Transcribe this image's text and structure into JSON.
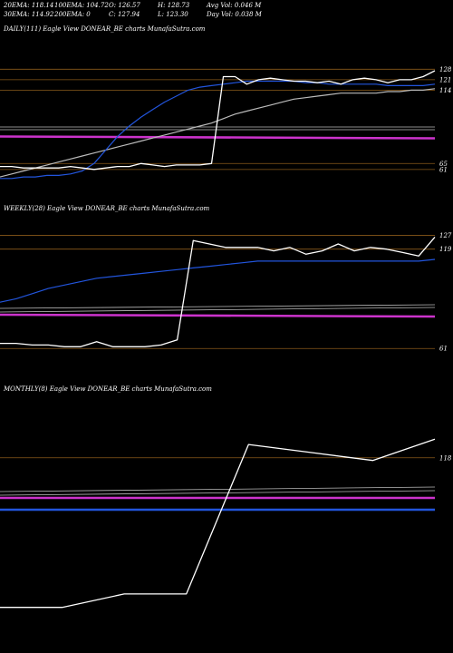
{
  "header": {
    "r1": [
      "20EMA: 118.14",
      "100EMA: 104.72",
      "O: 126.57",
      "H: 128.73",
      "Avg Vol: 0.046  M"
    ],
    "r2": [
      "30EMA: 114.92",
      "200EMA: 0",
      "C: 127.94",
      "L: 123.30",
      "Day Vol: 0.038  M"
    ]
  },
  "colors": {
    "price": "#ffffff",
    "ema_blue": "#2255dd",
    "magenta": "#cc33cc",
    "orange": "#8a5a1a",
    "gray": "#bbbbbb"
  },
  "chart_data": [
    {
      "type": "line",
      "title": "DAILY(111) Eagle  View  DONEAR_BE charts MunafaSutra.com",
      "ylim": [
        50,
        150
      ],
      "levels": [
        128,
        121,
        114,
        65,
        61
      ],
      "level_labels": [
        "128",
        "121",
        "114",
        "65",
        "61"
      ],
      "x": [
        0,
        3,
        6,
        9,
        12,
        15,
        18,
        21,
        24,
        27,
        30,
        33,
        36,
        39,
        42,
        45,
        48,
        51,
        54,
        57,
        60,
        63,
        66,
        69,
        72,
        75,
        78,
        81,
        84,
        87,
        90,
        93,
        96,
        99,
        102,
        105,
        108,
        111
      ],
      "series": [
        {
          "values": [
            63,
            63,
            62,
            62,
            62,
            62,
            63,
            62,
            61,
            62,
            63,
            63,
            65,
            64,
            63,
            64,
            64,
            64,
            65,
            123,
            123,
            118,
            121,
            122,
            121,
            120,
            120,
            119,
            120,
            118,
            121,
            122,
            121,
            119,
            121,
            121,
            123,
            127
          ]
        },
        {
          "values": [
            55,
            55,
            56,
            56,
            57,
            57,
            58,
            60,
            65,
            74,
            83,
            90,
            96,
            101,
            106,
            110,
            114,
            116,
            117,
            118,
            119,
            120,
            120,
            120,
            120,
            120,
            119,
            119,
            118,
            118,
            118,
            118,
            118,
            117,
            117,
            117,
            117,
            118
          ]
        },
        {
          "values": [
            56,
            58,
            60,
            62,
            64,
            66,
            68,
            70,
            72,
            74,
            76,
            78,
            80,
            82,
            84,
            86,
            88,
            90,
            92,
            95,
            98,
            100,
            102,
            104,
            106,
            108,
            109,
            110,
            111,
            112,
            112,
            112,
            112,
            113,
            113,
            114,
            114,
            115
          ]
        }
      ]
    },
    {
      "type": "line",
      "title": "WEEKLY(28) Eagle  View  DONEAR_BE charts MunafaSutra.com",
      "ylim": [
        50,
        140
      ],
      "levels": [
        127,
        119,
        61
      ],
      "level_labels": [
        "127",
        "119",
        "61"
      ],
      "x": [
        0,
        1,
        2,
        3,
        4,
        5,
        6,
        7,
        8,
        9,
        10,
        11,
        12,
        13,
        14,
        15,
        16,
        17,
        18,
        19,
        20,
        21,
        22,
        23,
        24,
        25,
        26,
        27
      ],
      "series": [
        {
          "values": [
            64,
            64,
            63,
            63,
            62,
            62,
            65,
            62,
            62,
            62,
            63,
            66,
            124,
            122,
            120,
            120,
            120,
            118,
            120,
            116,
            118,
            122,
            118,
            120,
            119,
            117,
            115,
            126
          ]
        },
        {
          "values": [
            88,
            90,
            93,
            96,
            98,
            100,
            102,
            103,
            104,
            105,
            106,
            107,
            108,
            109,
            110,
            111,
            112,
            112,
            112,
            112,
            112,
            112,
            112,
            112,
            112,
            112,
            112,
            113
          ]
        }
      ]
    },
    {
      "type": "line",
      "title": "MONTHLY(8) Eagle  View  DONEAR_BE charts MunafaSutra.com",
      "ylim": [
        50,
        140
      ],
      "levels": [
        118
      ],
      "level_labels": [
        "118"
      ],
      "x": [
        0,
        1,
        2,
        3,
        4,
        5,
        6,
        7
      ],
      "series": [
        {
          "values": [
            62,
            62,
            67,
            67,
            123,
            120,
            117,
            125
          ]
        }
      ]
    }
  ]
}
